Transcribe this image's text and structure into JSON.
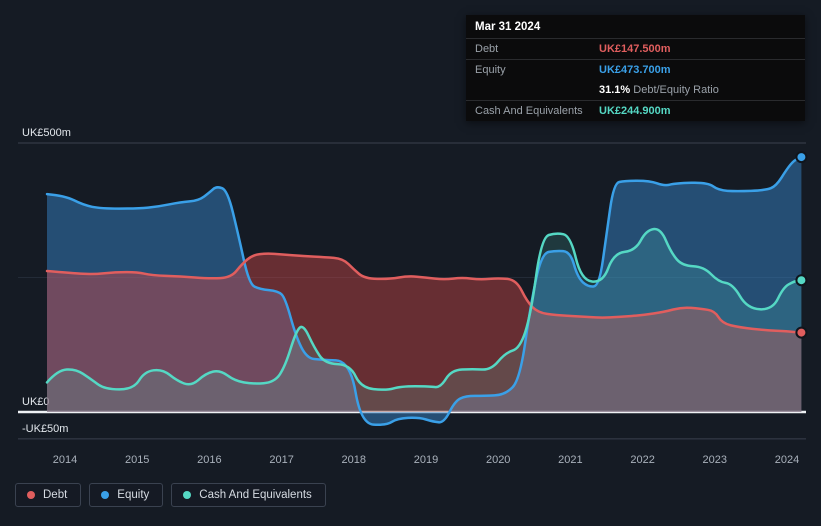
{
  "colors": {
    "debt": "#e05e5e",
    "equity": "#3aa0e8",
    "cash": "#55d8c4"
  },
  "tooltip": {
    "date": "Mar 31 2024",
    "debt_label": "Debt",
    "debt_value": "UK£147.500m",
    "equity_label": "Equity",
    "equity_value": "UK£473.700m",
    "ratio_value": "31.1%",
    "ratio_label": " Debt/Equity Ratio",
    "cash_label": "Cash And Equivalents",
    "cash_value": "UK£244.900m"
  },
  "legend": [
    {
      "label": "Debt",
      "key": "debt"
    },
    {
      "label": "Equity",
      "key": "equity"
    },
    {
      "label": "Cash And Equivalents",
      "key": "cash"
    }
  ],
  "chart_data": {
    "type": "area",
    "unit": "UK£m",
    "ylim": [
      -50,
      500
    ],
    "xlim": [
      2013.75,
      2024.25
    ],
    "grid": true,
    "legend_position": "bottom-left",
    "yticks": [
      {
        "value": 500,
        "label": "UK£500m",
        "kind": "major"
      },
      {
        "value": 250,
        "label": "",
        "kind": "faint"
      },
      {
        "value": 0,
        "label": "UK£0",
        "kind": "zero"
      },
      {
        "value": -50,
        "label": "-UK£50m",
        "kind": "major"
      }
    ],
    "xticks": [
      "2014",
      "2015",
      "2016",
      "2017",
      "2018",
      "2019",
      "2020",
      "2021",
      "2022",
      "2023",
      "2024"
    ],
    "series": [
      {
        "name": "Equity",
        "key": "equity",
        "fill": "rgba(54,130,195,0.50)",
        "points": [
          [
            2013.75,
            405
          ],
          [
            2014.0,
            402
          ],
          [
            2014.25,
            385
          ],
          [
            2014.5,
            378
          ],
          [
            2015.0,
            378
          ],
          [
            2015.3,
            382
          ],
          [
            2015.6,
            390
          ],
          [
            2015.85,
            393
          ],
          [
            2016.0,
            408
          ],
          [
            2016.1,
            420
          ],
          [
            2016.25,
            412
          ],
          [
            2016.4,
            330
          ],
          [
            2016.55,
            238
          ],
          [
            2016.7,
            228
          ],
          [
            2016.95,
            225
          ],
          [
            2017.05,
            212
          ],
          [
            2017.2,
            140
          ],
          [
            2017.35,
            100
          ],
          [
            2017.55,
            97
          ],
          [
            2017.95,
            95
          ],
          [
            2018.1,
            -22
          ],
          [
            2018.45,
            -25
          ],
          [
            2018.6,
            -12
          ],
          [
            2018.9,
            -10
          ],
          [
            2019.1,
            -18
          ],
          [
            2019.25,
            -20
          ],
          [
            2019.4,
            20
          ],
          [
            2019.55,
            30
          ],
          [
            2019.8,
            30
          ],
          [
            2020.1,
            32
          ],
          [
            2020.3,
            60
          ],
          [
            2020.45,
            200
          ],
          [
            2020.6,
            295
          ],
          [
            2020.8,
            300
          ],
          [
            2021.0,
            298
          ],
          [
            2021.1,
            250
          ],
          [
            2021.25,
            232
          ],
          [
            2021.4,
            235
          ],
          [
            2021.5,
            330
          ],
          [
            2021.6,
            425
          ],
          [
            2021.75,
            430
          ],
          [
            2022.1,
            430
          ],
          [
            2022.3,
            420
          ],
          [
            2022.45,
            425
          ],
          [
            2022.9,
            427
          ],
          [
            2023.05,
            412
          ],
          [
            2023.3,
            410
          ],
          [
            2023.7,
            412
          ],
          [
            2023.85,
            420
          ],
          [
            2024.0,
            452
          ],
          [
            2024.1,
            468
          ],
          [
            2024.2,
            473.7
          ]
        ]
      },
      {
        "name": "Debt",
        "key": "debt",
        "fill": "rgba(205,70,70,0.45)",
        "points": [
          [
            2013.75,
            262
          ],
          [
            2014.1,
            258
          ],
          [
            2014.4,
            256
          ],
          [
            2014.7,
            260
          ],
          [
            2015.0,
            260
          ],
          [
            2015.2,
            254
          ],
          [
            2015.6,
            252
          ],
          [
            2016.0,
            248
          ],
          [
            2016.3,
            250
          ],
          [
            2016.45,
            275
          ],
          [
            2016.6,
            292
          ],
          [
            2016.8,
            295
          ],
          [
            2017.0,
            293
          ],
          [
            2017.3,
            290
          ],
          [
            2017.6,
            288
          ],
          [
            2017.85,
            285
          ],
          [
            2018.0,
            265
          ],
          [
            2018.15,
            248
          ],
          [
            2018.5,
            247
          ],
          [
            2018.75,
            253
          ],
          [
            2019.0,
            250
          ],
          [
            2019.25,
            246
          ],
          [
            2019.5,
            250
          ],
          [
            2019.75,
            246
          ],
          [
            2020.0,
            249
          ],
          [
            2020.25,
            246
          ],
          [
            2020.4,
            205
          ],
          [
            2020.55,
            185
          ],
          [
            2020.8,
            180
          ],
          [
            2021.1,
            178
          ],
          [
            2021.4,
            175
          ],
          [
            2021.7,
            177
          ],
          [
            2022.0,
            180
          ],
          [
            2022.3,
            186
          ],
          [
            2022.55,
            195
          ],
          [
            2022.8,
            192
          ],
          [
            2023.0,
            188
          ],
          [
            2023.1,
            165
          ],
          [
            2023.35,
            157
          ],
          [
            2023.7,
            152
          ],
          [
            2024.0,
            150
          ],
          [
            2024.2,
            147.5
          ]
        ]
      },
      {
        "name": "Cash And Equivalents",
        "key": "cash",
        "fill": "rgba(85,216,196,0.16)",
        "points": [
          [
            2013.75,
            55
          ],
          [
            2013.9,
            78
          ],
          [
            2014.15,
            80
          ],
          [
            2014.35,
            62
          ],
          [
            2014.55,
            42
          ],
          [
            2014.95,
            42
          ],
          [
            2015.1,
            75
          ],
          [
            2015.35,
            80
          ],
          [
            2015.55,
            58
          ],
          [
            2015.75,
            48
          ],
          [
            2015.95,
            72
          ],
          [
            2016.15,
            78
          ],
          [
            2016.35,
            58
          ],
          [
            2016.6,
            52
          ],
          [
            2016.9,
            55
          ],
          [
            2017.05,
            85
          ],
          [
            2017.2,
            150
          ],
          [
            2017.3,
            163
          ],
          [
            2017.45,
            120
          ],
          [
            2017.6,
            90
          ],
          [
            2017.95,
            88
          ],
          [
            2018.1,
            45
          ],
          [
            2018.45,
            40
          ],
          [
            2018.65,
            48
          ],
          [
            2019.05,
            48
          ],
          [
            2019.2,
            45
          ],
          [
            2019.35,
            78
          ],
          [
            2019.65,
            80
          ],
          [
            2019.9,
            78
          ],
          [
            2020.1,
            110
          ],
          [
            2020.3,
            118
          ],
          [
            2020.45,
            180
          ],
          [
            2020.6,
            325
          ],
          [
            2020.8,
            333
          ],
          [
            2021.0,
            328
          ],
          [
            2021.15,
            245
          ],
          [
            2021.45,
            240
          ],
          [
            2021.6,
            295
          ],
          [
            2021.9,
            300
          ],
          [
            2022.05,
            338
          ],
          [
            2022.25,
            342
          ],
          [
            2022.4,
            295
          ],
          [
            2022.55,
            272
          ],
          [
            2022.85,
            270
          ],
          [
            2023.05,
            242
          ],
          [
            2023.25,
            238
          ],
          [
            2023.45,
            192
          ],
          [
            2023.8,
            190
          ],
          [
            2023.95,
            232
          ],
          [
            2024.1,
            243
          ],
          [
            2024.2,
            244.9
          ]
        ]
      }
    ]
  }
}
